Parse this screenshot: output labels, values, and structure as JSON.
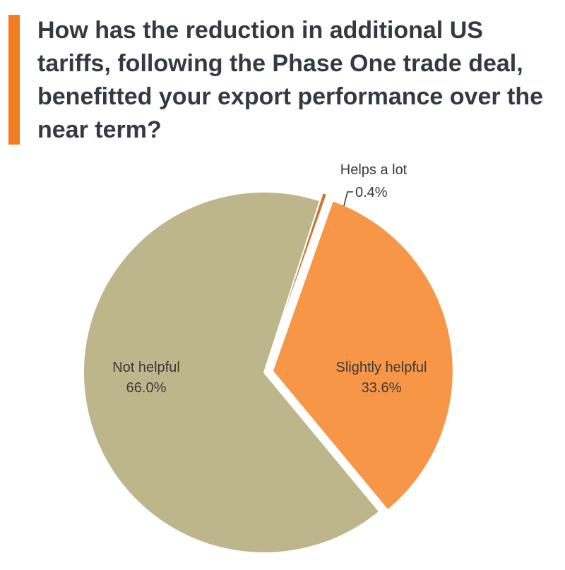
{
  "title": "How has the reduction in additional US tariffs, following the Phase One trade deal, benefitted your export performance over the near term?",
  "colors": {
    "accent_bar": "#f47b20",
    "background": "#ffffff"
  },
  "chart_data": {
    "type": "pie",
    "title": "How has the reduction in additional US tariffs, following the Phase One trade deal, benefitted your export performance over the near term?",
    "slices": [
      {
        "label": "Helps a lot",
        "value": 0.4,
        "display": "0.4%",
        "color": "#c8772f",
        "exploded": true
      },
      {
        "label": "Slightly helpful",
        "value": 33.6,
        "display": "33.6%",
        "color": "#f79646",
        "exploded": true
      },
      {
        "label": "Not helpful",
        "value": 66.0,
        "display": "66.0%",
        "color": "#bdb68b",
        "exploded": false
      }
    ],
    "legend": "none",
    "data_labels": "label, percent"
  }
}
